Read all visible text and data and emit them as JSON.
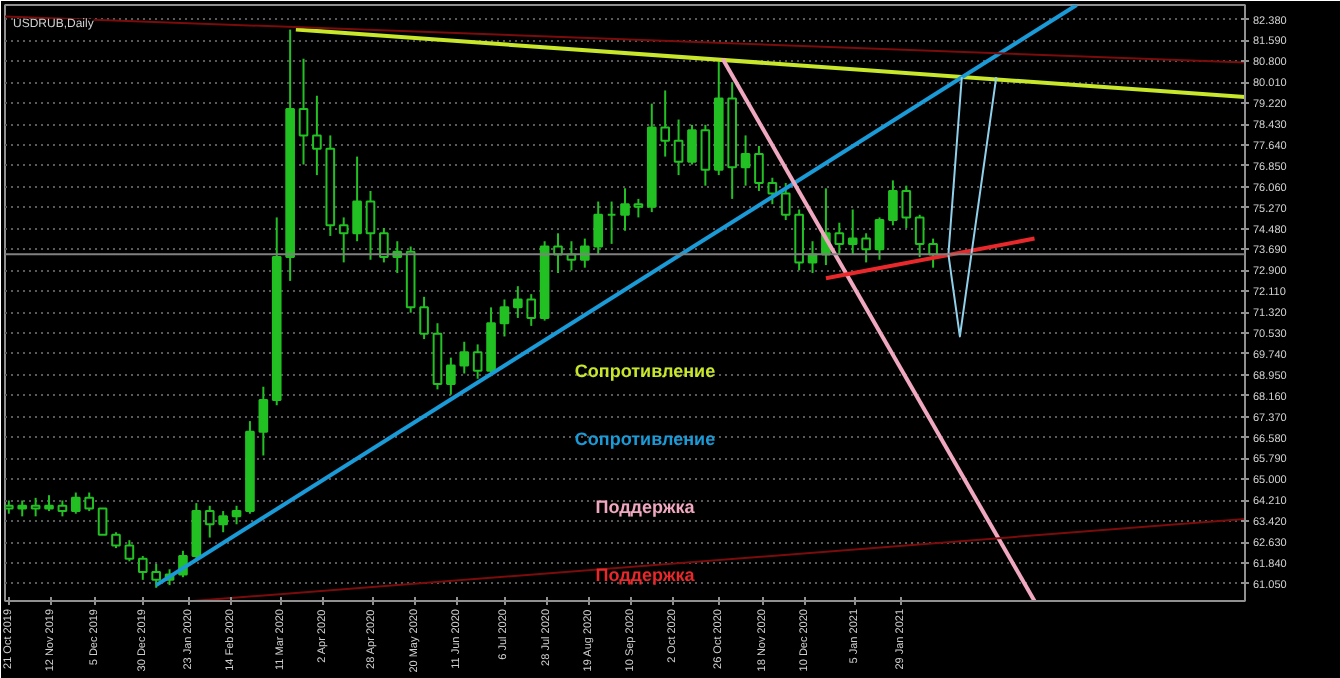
{
  "chart_data": {
    "type": "candlestick",
    "title": "USDRUB,Daily",
    "xlim": [
      "2019-10-19",
      "2021-07-28"
    ],
    "xticks": [
      {
        "value": "2019-10-21",
        "label": "21 Oct 2019"
      },
      {
        "value": "2019-11-12",
        "label": "12 Nov 2019"
      },
      {
        "value": "2019-12-05",
        "label": "5 Dec 2019"
      },
      {
        "value": "2019-12-30",
        "label": "30 Dec 2019"
      },
      {
        "value": "2020-01-23",
        "label": "23 Jan 2020"
      },
      {
        "value": "2020-02-14",
        "label": "14 Feb 2020"
      },
      {
        "value": "2020-03-11",
        "label": "11 Mar 2020"
      },
      {
        "value": "2020-04-02",
        "label": "2 Apr 2020"
      },
      {
        "value": "2020-04-28",
        "label": "28 Apr 2020"
      },
      {
        "value": "2020-05-20",
        "label": "20 May 2020"
      },
      {
        "value": "2020-06-11",
        "label": "11 Jun 2020"
      },
      {
        "value": "2020-07-06",
        "label": "6 Jul 2020"
      },
      {
        "value": "2020-07-28",
        "label": "28 Jul 2020"
      },
      {
        "value": "2020-08-19",
        "label": "19 Aug 2020"
      },
      {
        "value": "2020-09-10",
        "label": "10 Sep 2020"
      },
      {
        "value": "2020-10-02",
        "label": "2 Oct 2020"
      },
      {
        "value": "2020-10-26",
        "label": "26 Oct 2020"
      },
      {
        "value": "2020-11-18",
        "label": "18 Nov 2020"
      },
      {
        "value": "2020-12-10",
        "label": "10 Dec 2020"
      },
      {
        "value": "2021-01-05",
        "label": "5 Jan 2021"
      },
      {
        "value": "2021-01-29",
        "label": "29 Jan 2021"
      }
    ],
    "ylim": [
      60.4,
      82.93
    ],
    "yticks": [
      {
        "value": 61.05,
        "label": "61.050"
      },
      {
        "value": 61.84,
        "label": "61.840"
      },
      {
        "value": 62.63,
        "label": "62.630"
      },
      {
        "value": 63.42,
        "label": "63.420"
      },
      {
        "value": 64.21,
        "label": "64.210"
      },
      {
        "value": 65.0,
        "label": "65.000"
      },
      {
        "value": 65.79,
        "label": "65.790"
      },
      {
        "value": 66.58,
        "label": "66.580"
      },
      {
        "value": 67.37,
        "label": "67.370"
      },
      {
        "value": 68.16,
        "label": "68.160"
      },
      {
        "value": 68.95,
        "label": "68.950"
      },
      {
        "value": 69.74,
        "label": "69.740"
      },
      {
        "value": 70.53,
        "label": "70.530"
      },
      {
        "value": 71.32,
        "label": "71.320"
      },
      {
        "value": 72.11,
        "label": "72.110"
      },
      {
        "value": 72.9,
        "label": "72.900"
      },
      {
        "value": 73.69,
        "label": "73.690"
      },
      {
        "value": 74.48,
        "label": "74.480"
      },
      {
        "value": 75.27,
        "label": "75.270"
      },
      {
        "value": 76.06,
        "label": "76.060"
      },
      {
        "value": 76.85,
        "label": "76.850"
      },
      {
        "value": 77.64,
        "label": "77.640"
      },
      {
        "value": 78.43,
        "label": "78.430"
      },
      {
        "value": 79.22,
        "label": "79.220"
      },
      {
        "value": 80.01,
        "label": "80.010"
      },
      {
        "value": 80.8,
        "label": "80.800"
      },
      {
        "value": 81.59,
        "label": "81.590"
      },
      {
        "value": 82.38,
        "label": "82.380"
      }
    ],
    "grid": true,
    "ref_lines": [
      {
        "axis": "y",
        "value": 73.51,
        "color": "#808080"
      }
    ],
    "series": [
      {
        "color": "#22c022",
        "x": [
          "2019-10-21",
          "2019-10-28",
          "2019-11-04",
          "2019-11-11",
          "2019-11-18",
          "2019-11-25",
          "2019-12-02",
          "2019-12-09",
          "2019-12-16",
          "2019-12-23",
          "2019-12-30",
          "2020-01-06",
          "2020-01-13",
          "2020-01-20",
          "2020-01-27",
          "2020-02-03",
          "2020-02-10",
          "2020-02-17",
          "2020-02-24",
          "2020-03-02",
          "2020-03-09",
          "2020-03-16",
          "2020-03-23",
          "2020-03-30",
          "2020-04-06",
          "2020-04-13",
          "2020-04-20",
          "2020-04-27",
          "2020-05-04",
          "2020-05-11",
          "2020-05-18",
          "2020-05-25",
          "2020-06-01",
          "2020-06-08",
          "2020-06-15",
          "2020-06-22",
          "2020-06-29",
          "2020-07-06",
          "2020-07-13",
          "2020-07-20",
          "2020-07-27",
          "2020-08-03",
          "2020-08-10",
          "2020-08-17",
          "2020-08-24",
          "2020-08-31",
          "2020-09-07",
          "2020-09-14",
          "2020-09-21",
          "2020-09-28",
          "2020-10-05",
          "2020-10-12",
          "2020-10-19",
          "2020-10-26",
          "2020-11-02",
          "2020-11-09",
          "2020-11-16",
          "2020-11-23",
          "2020-11-30",
          "2020-12-07",
          "2020-12-14",
          "2020-12-21",
          "2020-12-28",
          "2021-01-04",
          "2021-01-11",
          "2021-01-18",
          "2021-01-25",
          "2021-02-01",
          "2021-02-08",
          "2021-02-15"
        ],
        "ohlc": [
          [
            64.0,
            64.2,
            63.7,
            63.9
          ],
          [
            63.9,
            64.2,
            63.6,
            64.0
          ],
          [
            64.0,
            64.3,
            63.6,
            63.9
          ],
          [
            63.9,
            64.4,
            63.8,
            64.0
          ],
          [
            64.0,
            64.2,
            63.6,
            63.8
          ],
          [
            63.8,
            64.5,
            63.7,
            64.3
          ],
          [
            64.3,
            64.5,
            63.8,
            63.9
          ],
          [
            63.9,
            63.9,
            62.9,
            62.9
          ],
          [
            62.9,
            63.0,
            62.4,
            62.5
          ],
          [
            62.5,
            62.7,
            61.9,
            62.0
          ],
          [
            62.0,
            62.1,
            61.2,
            61.5
          ],
          [
            61.5,
            61.8,
            60.9,
            61.2
          ],
          [
            61.2,
            61.6,
            61.0,
            61.4
          ],
          [
            61.4,
            62.3,
            61.3,
            62.1
          ],
          [
            62.1,
            64.1,
            61.9,
            63.8
          ],
          [
            63.8,
            64.0,
            62.8,
            63.3
          ],
          [
            63.3,
            63.8,
            63.0,
            63.6
          ],
          [
            63.6,
            64.0,
            63.3,
            63.8
          ],
          [
            63.8,
            67.2,
            63.7,
            66.8
          ],
          [
            66.8,
            68.5,
            65.9,
            68.0
          ],
          [
            68.0,
            74.9,
            67.8,
            73.4
          ],
          [
            73.4,
            82.0,
            72.5,
            79.0
          ],
          [
            79.0,
            80.9,
            76.9,
            78.0
          ],
          [
            78.0,
            79.5,
            76.5,
            77.5
          ],
          [
            77.5,
            78.0,
            74.2,
            74.6
          ],
          [
            74.6,
            74.9,
            73.2,
            74.3
          ],
          [
            74.3,
            77.2,
            74.0,
            75.5
          ],
          [
            75.5,
            75.9,
            73.3,
            74.3
          ],
          [
            74.3,
            74.5,
            73.2,
            73.4
          ],
          [
            73.4,
            74.0,
            72.8,
            73.6
          ],
          [
            73.6,
            73.8,
            71.3,
            71.5
          ],
          [
            71.5,
            71.9,
            70.3,
            70.5
          ],
          [
            70.5,
            70.9,
            68.4,
            68.6
          ],
          [
            68.6,
            69.6,
            68.2,
            69.3
          ],
          [
            69.3,
            70.2,
            69.0,
            69.8
          ],
          [
            69.8,
            70.1,
            68.8,
            69.1
          ],
          [
            69.1,
            71.5,
            68.9,
            70.9
          ],
          [
            70.9,
            71.8,
            70.4,
            71.5
          ],
          [
            71.5,
            72.3,
            71.1,
            71.8
          ],
          [
            71.8,
            72.0,
            70.8,
            71.1
          ],
          [
            71.1,
            74.0,
            71.0,
            73.8
          ],
          [
            73.8,
            74.3,
            72.8,
            73.5
          ],
          [
            73.5,
            74.0,
            72.9,
            73.3
          ],
          [
            73.3,
            74.1,
            73.0,
            73.8
          ],
          [
            73.8,
            75.5,
            73.5,
            75.0
          ],
          [
            75.0,
            75.5,
            73.9,
            75.0
          ],
          [
            75.0,
            76.0,
            74.4,
            75.4
          ],
          [
            75.4,
            75.6,
            74.9,
            75.3
          ],
          [
            75.3,
            79.2,
            75.1,
            78.3
          ],
          [
            78.3,
            79.7,
            77.2,
            77.8
          ],
          [
            77.8,
            78.6,
            76.5,
            77.0
          ],
          [
            77.0,
            78.4,
            76.9,
            78.2
          ],
          [
            78.2,
            78.4,
            76.1,
            76.7
          ],
          [
            76.7,
            80.8,
            76.5,
            79.4
          ],
          [
            79.4,
            80.0,
            75.6,
            76.8
          ],
          [
            76.8,
            78.0,
            76.1,
            77.3
          ],
          [
            77.3,
            77.6,
            75.9,
            76.2
          ],
          [
            76.2,
            76.4,
            75.4,
            75.8
          ],
          [
            75.8,
            76.2,
            74.8,
            75.0
          ],
          [
            75.0,
            75.2,
            72.9,
            73.2
          ],
          [
            73.2,
            74.0,
            72.8,
            73.5
          ],
          [
            73.5,
            76.0,
            73.1,
            74.3
          ],
          [
            74.3,
            74.7,
            73.5,
            73.9
          ],
          [
            73.9,
            75.2,
            73.5,
            74.1
          ],
          [
            74.1,
            74.3,
            73.2,
            73.7
          ],
          [
            73.7,
            74.9,
            73.3,
            74.8
          ],
          [
            74.8,
            76.3,
            74.6,
            75.9
          ],
          [
            75.9,
            76.1,
            74.5,
            74.9
          ],
          [
            74.9,
            75.0,
            73.4,
            73.9
          ],
          [
            73.9,
            74.1,
            73.0,
            73.5
          ]
        ]
      },
      {
        "type": "line",
        "name": "Сопротивление",
        "color": "#c8e62a",
        "x": [
          "2020-03-19",
          "2021-07-28"
        ],
        "values": [
          82.0,
          79.45
        ]
      },
      {
        "type": "line",
        "name": "Сопротивление",
        "color": "#1a9ad6",
        "x": [
          "2020-01-06",
          "2021-05-01"
        ],
        "values": [
          61.0,
          82.93
        ]
      },
      {
        "type": "line",
        "name": "Поддержка",
        "color": "#f0a8c0",
        "x": [
          "2020-10-28",
          "2021-04-09"
        ],
        "values": [
          80.9,
          60.4
        ]
      },
      {
        "type": "line",
        "name": "Поддержка",
        "color": "#e8282a",
        "x": [
          "2020-12-21",
          "2021-04-09"
        ],
        "values": [
          72.6,
          74.1
        ]
      },
      {
        "type": "line",
        "color": "#7a0c0c",
        "x": [
          "2019-10-19",
          "2021-07-28"
        ],
        "values": [
          82.5,
          80.76
        ]
      },
      {
        "type": "line",
        "color": "#7a0c0c",
        "x": [
          "2020-01-25",
          "2021-07-28"
        ],
        "values": [
          60.4,
          63.5
        ]
      },
      {
        "type": "line",
        "color": "#8fd0ea",
        "x": [
          "2021-03-02",
          "2021-02-23",
          "2021-03-01",
          "2021-03-20"
        ],
        "values": [
          80.2,
          73.5,
          70.4,
          80.2
        ]
      }
    ]
  }
}
